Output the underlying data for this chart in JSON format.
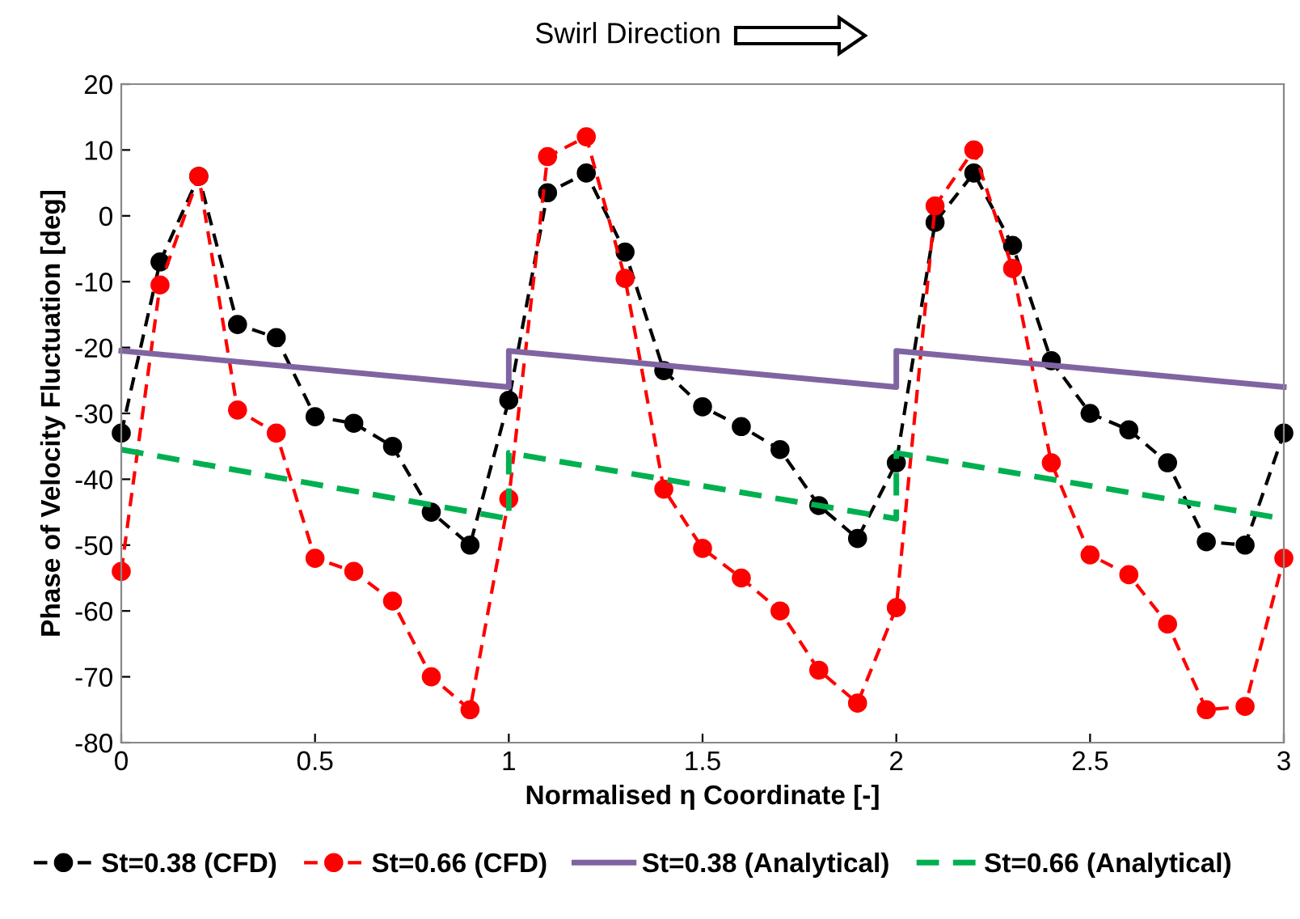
{
  "chart_data": {
    "type": "line",
    "xlabel": "Normalised η Coordinate [-]",
    "ylabel": "Phase of Velocity Fluctuation [deg]",
    "annotations": [
      "Swirl Direction"
    ],
    "xlim": [
      0,
      3
    ],
    "xticks": [
      0,
      0.5,
      1,
      1.5,
      2,
      2.5,
      3
    ],
    "ylim": [
      -80,
      20
    ],
    "yticks": [
      -80,
      -70,
      -60,
      -50,
      -40,
      -30,
      -20,
      -10,
      0,
      10,
      20
    ],
    "grid": false,
    "legend": "bottom",
    "series": [
      {
        "name": "St=0.38 (CFD)",
        "color": "#000000",
        "marker": "circle",
        "line_style": "dashed",
        "x": [
          0,
          0.1,
          0.2,
          0.3,
          0.4,
          0.5,
          0.6,
          0.7,
          0.8,
          0.9,
          1.0,
          1.1,
          1.2,
          1.3,
          1.4,
          1.5,
          1.6,
          1.7,
          1.8,
          1.9,
          2.0,
          2.1,
          2.2,
          2.3,
          2.4,
          2.5,
          2.6,
          2.7,
          2.8,
          2.9,
          3.0
        ],
        "values": [
          -33,
          -7,
          6,
          -16.5,
          -18.5,
          -30.5,
          -31.5,
          -35,
          -45,
          -50,
          -28,
          3.5,
          6.5,
          -5.5,
          -23.5,
          -29,
          -32,
          -35.5,
          -44,
          -49,
          -37.5,
          -1,
          6.5,
          -4.5,
          -22,
          -30,
          -32.5,
          -37.5,
          -49.5,
          -50,
          -33
        ]
      },
      {
        "name": "St=0.66 (CFD)",
        "color": "#ff0000",
        "marker": "circle",
        "line_style": "dashed",
        "x": [
          0,
          0.1,
          0.2,
          0.3,
          0.4,
          0.5,
          0.6,
          0.7,
          0.8,
          0.9,
          1.0,
          1.1,
          1.2,
          1.3,
          1.4,
          1.5,
          1.6,
          1.7,
          1.8,
          1.9,
          2.0,
          2.1,
          2.2,
          2.3,
          2.4,
          2.5,
          2.6,
          2.7,
          2.8,
          2.9,
          3.0
        ],
        "values": [
          -54,
          -10.5,
          6,
          -29.5,
          -33,
          -52,
          -54,
          -58.5,
          -70,
          -75,
          -43,
          9,
          12,
          -9.5,
          -41.5,
          -50.5,
          -55,
          -60,
          -69,
          -74,
          -59.5,
          1.5,
          10,
          -8,
          -37.5,
          -51.5,
          -54.5,
          -62,
          -75,
          -74.5,
          -52
        ]
      },
      {
        "name": "St=0.38 (Analytical)",
        "color": "#8064a2",
        "marker": "none",
        "line_style": "solid",
        "x": [
          0,
          1,
          1,
          2,
          2,
          3
        ],
        "values": [
          -20.5,
          -26,
          -20.5,
          -26,
          -20.5,
          -26
        ]
      },
      {
        "name": "St=0.66 (Analytical)",
        "color": "#00b050",
        "marker": "none",
        "line_style": "dashed",
        "x": [
          0,
          1,
          1,
          2,
          2,
          3
        ],
        "values": [
          -35.5,
          -46,
          -36,
          -46,
          -36,
          -46
        ]
      }
    ]
  }
}
